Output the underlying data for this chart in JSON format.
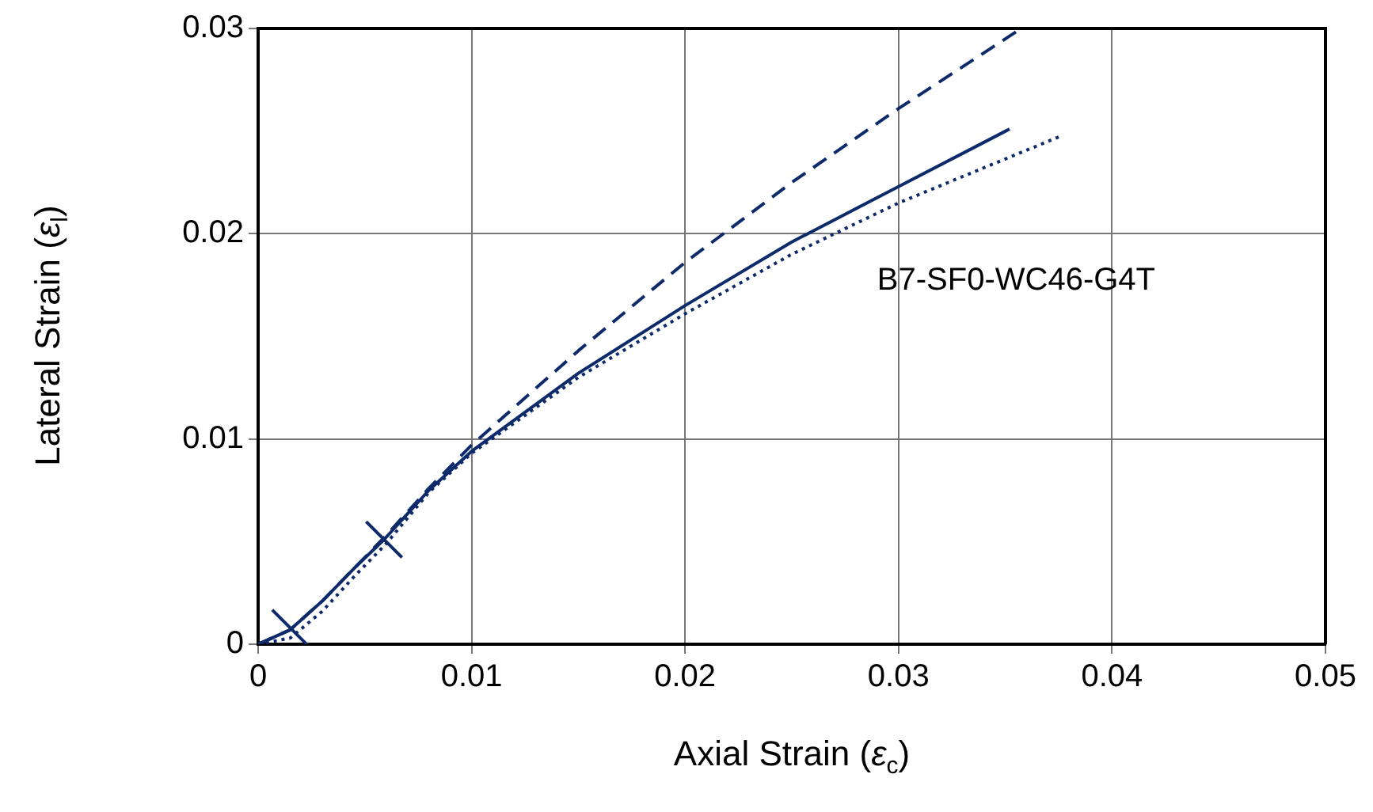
{
  "chart_data": {
    "type": "line",
    "xlabel": "Axial Strain (ε$_{c}$)",
    "ylabel": "Lateral Strain (ε$_{l}$)",
    "xlim": [
      0,
      0.05
    ],
    "xticks": [
      0,
      0.01,
      0.02,
      0.03,
      0.04,
      0.05
    ],
    "ylim": [
      0,
      0.03
    ],
    "yticks": [
      0,
      0.01,
      0.02,
      0.03
    ],
    "grid": true,
    "legend": false,
    "annotations": [
      "B7-SF0-WC46-G4T"
    ],
    "series": [
      {
        "color": "#0d2a6b",
        "line_style": "dashed",
        "marker": "none",
        "x": [
          0,
          0.0015,
          0.003,
          0.0045,
          0.006,
          0.008,
          0.01,
          0.015,
          0.02,
          0.025,
          0.03,
          0.0356
        ],
        "values": [
          0,
          0.0007,
          0.0021,
          0.0037,
          0.0053,
          0.0076,
          0.0097,
          0.0143,
          0.0186,
          0.0225,
          0.0261,
          0.0299
        ]
      },
      {
        "color": "#0d2a6b",
        "line_style": "solid",
        "marker": "none",
        "x": [
          0,
          0.0015,
          0.003,
          0.0045,
          0.0059,
          0.008,
          0.01,
          0.015,
          0.02,
          0.025,
          0.03,
          0.0352
        ],
        "values": [
          0,
          0.0007,
          0.0021,
          0.0037,
          0.0051,
          0.0075,
          0.0094,
          0.0132,
          0.0165,
          0.0196,
          0.0223,
          0.0251
        ]
      },
      {
        "color": "#0d2a6b",
        "line_style": "dotted",
        "marker": "none",
        "x": [
          0,
          0.0015,
          0.003,
          0.0045,
          0.006,
          0.008,
          0.01,
          0.015,
          0.02,
          0.025,
          0.03,
          0.0377
        ],
        "values": [
          0,
          0.0003,
          0.0016,
          0.0033,
          0.0049,
          0.0074,
          0.0093,
          0.013,
          0.0161,
          0.019,
          0.0215,
          0.0248
        ]
      },
      {
        "type": "scatter",
        "color": "#0d2a6b",
        "marker": "cross",
        "x": [
          0.0015,
          0.0059
        ],
        "values": [
          0.0008,
          0.0051
        ]
      }
    ]
  }
}
